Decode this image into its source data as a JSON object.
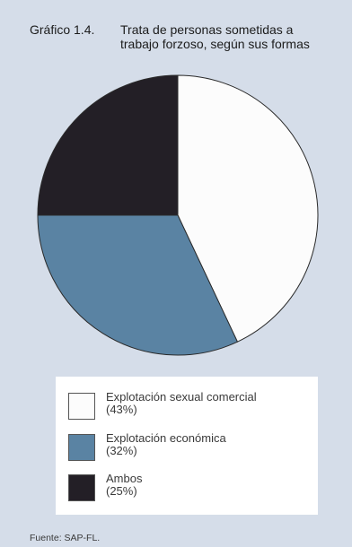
{
  "header": {
    "figure_number": "Gráfico 1.4.",
    "title_line1": "Trata de personas sometidas a",
    "title_line2": "trabajo forzoso, según sus formas"
  },
  "legend": {
    "items": [
      {
        "label": "Explotación sexual comercial",
        "value_text": "(43%)",
        "color": "#fcfcfc"
      },
      {
        "label": "Explotación económica",
        "value_text": "(32%)",
        "color": "#5a83a3"
      },
      {
        "label": "Ambos",
        "value_text": "(25%)",
        "color": "#231f26"
      }
    ]
  },
  "source": "Fuente: SAP-FL.",
  "chart_data": {
    "type": "pie",
    "title": "Trata de personas sometidas a trabajo forzoso, según sus formas",
    "categories": [
      "Explotación sexual comercial",
      "Explotación económica",
      "Ambos"
    ],
    "values": [
      43,
      32,
      25
    ],
    "colors": [
      "#fcfcfc",
      "#5a83a3",
      "#231f26"
    ],
    "start": "12 o'clock",
    "direction": "clockwise",
    "legend_position": "bottom"
  }
}
